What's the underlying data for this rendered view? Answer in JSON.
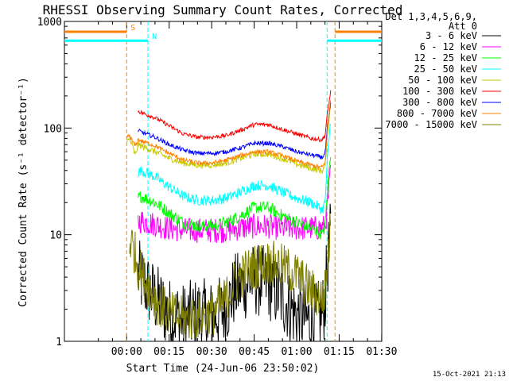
{
  "chart_data": {
    "type": "line",
    "title": "RHESSI Observing Summary Count Rates, Corrected",
    "xlabel": "Start Time (24-Jun-06 23:50:02)",
    "ylabel": "Corrected Count Rate (s⁻¹ detector⁻¹)",
    "x_unit": "minutes from 23:50:02",
    "xlim": [
      -12.0,
      100.0
    ],
    "ylim": [
      1,
      1000
    ],
    "y_scale": "log",
    "x_ticks": [
      {
        "label": "00:00",
        "minute": 9.97
      },
      {
        "label": "00:15",
        "minute": 24.97
      },
      {
        "label": "00:30",
        "minute": 39.97
      },
      {
        "label": "00:45",
        "minute": 54.97
      },
      {
        "label": "01:00",
        "minute": 69.97
      },
      {
        "label": "01:15",
        "minute": 84.97
      },
      {
        "label": "01:30",
        "minute": 99.97
      }
    ],
    "y_ticks": [
      {
        "label": "1",
        "value": 1
      },
      {
        "label": "10",
        "value": 10
      },
      {
        "label": "100",
        "value": 100
      },
      {
        "label": "1000",
        "value": 1000
      }
    ],
    "legend_header": [
      "Det 1,3,4,5,6,9,",
      "Att 0"
    ],
    "legend_placement": "right",
    "series": [
      {
        "name": "3 - 6 keV",
        "color": "#000000",
        "x": [
          14,
          15,
          20,
          25,
          30,
          35,
          40,
          45,
          48,
          52,
          55,
          60,
          65,
          70,
          75,
          79,
          80,
          81,
          82
        ],
        "values": [
          4.2,
          3.8,
          2.5,
          1.8,
          1.6,
          1.8,
          1.7,
          2.0,
          3.0,
          3.5,
          3.8,
          3.5,
          2.5,
          1.8,
          1.5,
          1.8,
          2.5,
          6,
          10
        ]
      },
      {
        "name": "6 - 12 keV",
        "color": "#ff00ff",
        "x": [
          14,
          15,
          20,
          25,
          30,
          35,
          40,
          45,
          50,
          55,
          60,
          65,
          70,
          75,
          79,
          80,
          81,
          82
        ],
        "values": [
          13,
          13.5,
          12.5,
          11.5,
          11,
          11,
          11,
          11,
          11.5,
          12,
          12,
          11.5,
          11.5,
          11.5,
          11.5,
          12,
          20,
          40
        ]
      },
      {
        "name": "12 - 25 keV",
        "color": "#00ff00",
        "x": [
          14,
          15,
          20,
          25,
          30,
          35,
          40,
          45,
          50,
          55,
          60,
          65,
          70,
          75,
          78,
          79,
          80,
          81,
          82
        ],
        "values": [
          22,
          23,
          20,
          16,
          13,
          12,
          12,
          13,
          15,
          18,
          18,
          15,
          13,
          11.5,
          10.5,
          10,
          12,
          30,
          60
        ]
      },
      {
        "name": "25 - 50 keV",
        "color": "#00ffff",
        "x": [
          14,
          15,
          20,
          25,
          30,
          35,
          40,
          45,
          50,
          55,
          60,
          65,
          70,
          75,
          78,
          79,
          80,
          81,
          82
        ],
        "values": [
          38,
          40,
          35,
          28,
          23,
          21,
          21,
          22,
          25,
          29,
          29,
          25,
          22,
          20,
          18,
          17,
          20,
          60,
          120
        ]
      },
      {
        "name": "50 - 100 keV",
        "color": "#c8c800",
        "x": [
          10,
          11,
          12,
          13,
          14,
          15,
          20,
          25,
          30,
          35,
          40,
          45,
          50,
          55,
          60,
          65,
          70,
          75,
          78,
          79,
          80,
          81,
          82
        ],
        "values": [
          75,
          78,
          68,
          55,
          70,
          68,
          60,
          52,
          47,
          45,
          45,
          47,
          52,
          57,
          57,
          52,
          46,
          42,
          40,
          40,
          44,
          100,
          170
        ]
      },
      {
        "name": "100 - 300 keV",
        "color": "#ff0000",
        "x": [
          14,
          15,
          20,
          25,
          30,
          35,
          40,
          45,
          50,
          55,
          60,
          65,
          70,
          75,
          78,
          79,
          80,
          81,
          82
        ],
        "values": [
          145,
          140,
          125,
          105,
          88,
          82,
          82,
          85,
          95,
          108,
          108,
          97,
          88,
          80,
          78,
          78,
          85,
          150,
          220
        ]
      },
      {
        "name": "300 - 800 keV",
        "color": "#0000ff",
        "x": [
          14,
          15,
          20,
          25,
          30,
          35,
          40,
          45,
          50,
          55,
          60,
          65,
          70,
          75,
          78,
          79,
          80,
          81,
          82
        ],
        "values": [
          95,
          92,
          82,
          70,
          62,
          58,
          58,
          60,
          65,
          72,
          72,
          67,
          60,
          56,
          54,
          53,
          58,
          110,
          170
        ]
      },
      {
        "name": "800 - 7000 keV",
        "color": "#ff8000",
        "x": [
          10,
          11,
          12,
          13,
          14,
          15,
          20,
          25,
          30,
          35,
          40,
          45,
          50,
          55,
          60,
          65,
          70,
          75,
          78,
          79,
          80,
          81,
          82
        ],
        "values": [
          82,
          85,
          75,
          68,
          78,
          76,
          68,
          58,
          50,
          47,
          47,
          50,
          55,
          60,
          60,
          55,
          49,
          45,
          43,
          43,
          47,
          110,
          190
        ]
      },
      {
        "name": "7000 - 15000 keV",
        "color": "#808000",
        "x": [
          11,
          12,
          13,
          14,
          15,
          17,
          20,
          25,
          30,
          35,
          40,
          45,
          48,
          52,
          55,
          60,
          65,
          70,
          75,
          79,
          80,
          81,
          82
        ],
        "values": [
          9,
          8,
          6.5,
          5,
          4.5,
          3.5,
          2.5,
          1.8,
          1.6,
          1.7,
          1.8,
          2.5,
          3.5,
          4.5,
          5,
          5.5,
          5,
          4.2,
          3,
          2.5,
          3,
          6,
          12
        ]
      }
    ],
    "markers": [
      {
        "x": 9.97,
        "color": "#ff8000",
        "label": "S"
      },
      {
        "x": 17.5,
        "color": "#00ffff",
        "label": "N"
      },
      {
        "x": 80.7,
        "color": "#00ffff",
        "label": ""
      },
      {
        "x": 83.5,
        "color": "#ff8000",
        "label": ""
      }
    ],
    "bars": [
      {
        "y": 800,
        "x1": -12,
        "x2": 9.97,
        "color": "#ff8000",
        "label": "S"
      },
      {
        "y": 660,
        "x1": -12,
        "x2": 17.5,
        "color": "#00ffff",
        "label": "N"
      },
      {
        "y": 660,
        "x1": 80.7,
        "x2": 100,
        "color": "#00ffff",
        "label": ""
      },
      {
        "y": 800,
        "x1": 83.5,
        "x2": 100,
        "color": "#ff8000",
        "label": ""
      }
    ],
    "footer_timestamp": "15-Oct-2021 21:13"
  }
}
